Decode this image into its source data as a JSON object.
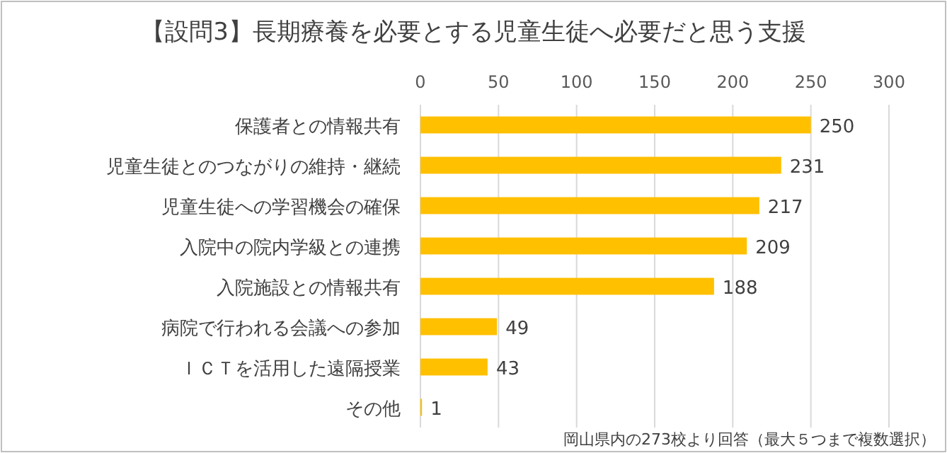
{
  "chart_data": {
    "type": "bar",
    "orientation": "horizontal",
    "title": "【設問3】長期療養を必要とする児童生徒へ必要だと思う支援",
    "categories": [
      "保護者との情報共有",
      "児童生徒とのつながりの維持・継続",
      "児童生徒への学習機会の確保",
      "入院中の院内学級との連携",
      "入院施設との情報共有",
      "病院で行われる会議への参加",
      "ＩＣＴを活用した遠隔授業",
      "その他"
    ],
    "values": [
      250,
      231,
      217,
      209,
      188,
      49,
      43,
      1
    ],
    "color": "#ffc000",
    "xlim": [
      0,
      300
    ],
    "xticks": [
      0,
      50,
      100,
      150,
      200,
      250,
      300
    ],
    "grid": "x",
    "data_labels": true,
    "annotations": [
      "岡山県内の273校より回答（最大５つまで複数選択）"
    ]
  }
}
